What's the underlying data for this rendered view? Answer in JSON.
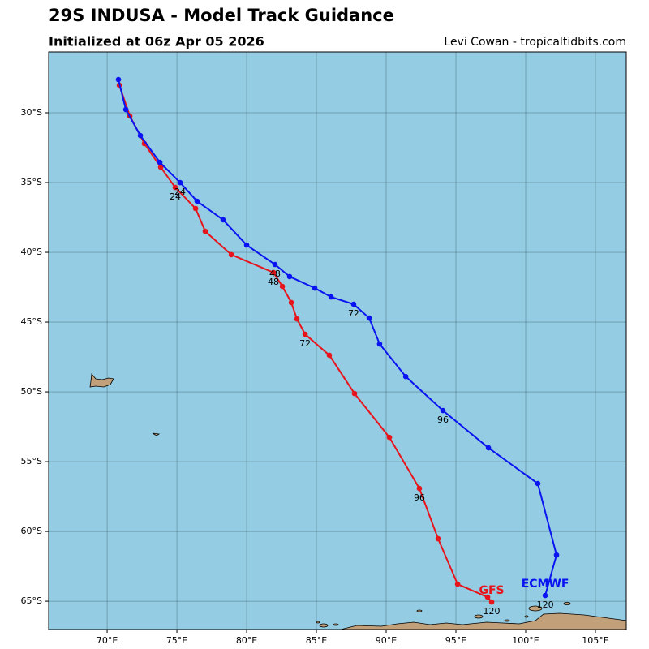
{
  "chart_data": {
    "type": "track",
    "title": "29S INDUSA - Model Track Guidance",
    "subtitle": "Initialized at 06z Apr 05 2026",
    "credit": "Levi Cowan - tropicaltidbits.com",
    "xlim": [
      65.81,
      107.21
    ],
    "ylim": [
      -67.03,
      -25.64
    ],
    "xticks": [
      {
        "value": 70,
        "label": "70°E"
      },
      {
        "value": 75,
        "label": "75°E"
      },
      {
        "value": 80,
        "label": "80°E"
      },
      {
        "value": 85,
        "label": "85°E"
      },
      {
        "value": 90,
        "label": "90°E"
      },
      {
        "value": 95,
        "label": "95°E"
      },
      {
        "value": 100,
        "label": "100°E"
      },
      {
        "value": 105,
        "label": "105°E"
      }
    ],
    "yticks": [
      {
        "value": -30,
        "label": "30°S"
      },
      {
        "value": -35,
        "label": "35°S"
      },
      {
        "value": -40,
        "label": "40°S"
      },
      {
        "value": -45,
        "label": "45°S"
      },
      {
        "value": -50,
        "label": "50°S"
      },
      {
        "value": -55,
        "label": "55°S"
      },
      {
        "value": -60,
        "label": "60°S"
      },
      {
        "value": -65,
        "label": "65°S"
      }
    ],
    "grid": true,
    "series": [
      {
        "name": "GFS",
        "color": "#e8141c",
        "x": [
          70.87,
          71.63,
          72.67,
          73.84,
          74.88,
          76.34,
          77.03,
          78.9,
          81.92,
          82.56,
          83.2,
          83.6,
          84.19,
          85.93,
          87.73,
          90.23,
          92.38,
          93.72,
          95.12,
          97.27,
          97.56
        ],
        "values": [
          -28.02,
          -30.23,
          -32.21,
          -33.9,
          -35.35,
          -36.86,
          -38.49,
          -40.17,
          -41.45,
          -42.44,
          -43.6,
          -44.77,
          -45.87,
          -47.38,
          -50.12,
          -53.26,
          -56.92,
          -60.52,
          -63.78,
          -64.71,
          -65.06
        ],
        "point_labels": [
          null,
          null,
          null,
          null,
          "24",
          null,
          null,
          null,
          "48",
          null,
          null,
          null,
          "72",
          null,
          null,
          null,
          "96",
          null,
          null,
          null,
          "120"
        ]
      },
      {
        "name": "ECMWF",
        "color": "#0a14f0",
        "x": [
          70.81,
          71.34,
          72.38,
          73.78,
          75.23,
          76.45,
          78.31,
          80.0,
          82.03,
          83.08,
          84.88,
          86.05,
          87.67,
          88.78,
          89.53,
          91.4,
          94.07,
          97.33,
          100.87,
          102.21,
          101.4
        ],
        "values": [
          -27.62,
          -29.77,
          -31.63,
          -33.55,
          -35.0,
          -36.34,
          -37.67,
          -39.48,
          -40.87,
          -41.74,
          -42.56,
          -43.2,
          -43.72,
          -44.71,
          -46.57,
          -48.9,
          -51.34,
          -54.01,
          -56.57,
          -61.69,
          -64.59
        ],
        "point_labels": [
          null,
          null,
          null,
          null,
          "24",
          null,
          null,
          null,
          "48",
          null,
          null,
          null,
          "72",
          null,
          null,
          null,
          "96",
          null,
          null,
          null,
          "120"
        ]
      }
    ]
  }
}
